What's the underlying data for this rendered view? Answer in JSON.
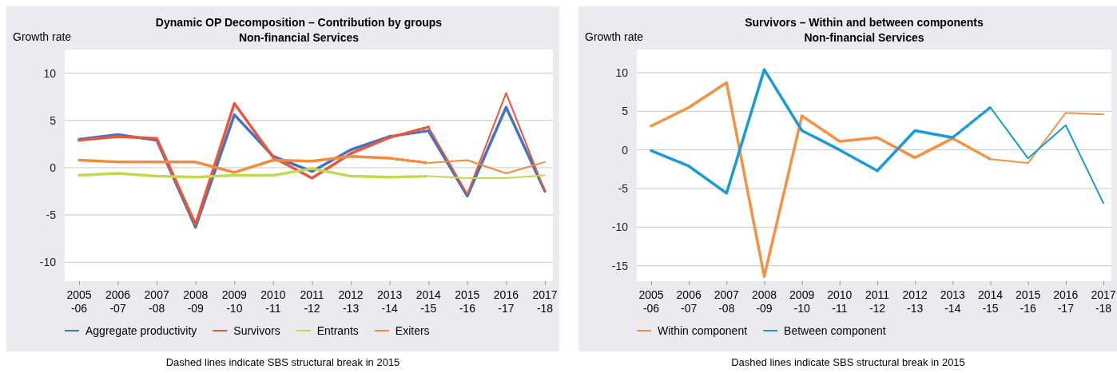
{
  "chart_data": [
    {
      "type": "line",
      "title": "Dynamic OP Decomposition – Contribution by groups",
      "subtitle": "Non-financial Services",
      "ylabel": "Growth rate",
      "categories": [
        "2005\n-06",
        "2006\n-07",
        "2007\n-08",
        "2008\n-09",
        "2009\n-10",
        "2010\n-11",
        "2011\n-12",
        "2012\n-13",
        "2013\n-14",
        "2014\n-15",
        "2015\n-16",
        "2016\n-17",
        "2017\n-18"
      ],
      "ylim": [
        -12,
        12.5
      ],
      "yticks": [
        -10,
        -5,
        0,
        5,
        10
      ],
      "grid": "y",
      "legend": "bottom left",
      "line_style": "solid",
      "annotations": [
        "Dashed lines indicate SBS structural break in 2015"
      ],
      "series": [
        {
          "name": "Aggregate productivity",
          "color": "#4472c4",
          "values": [
            3.0,
            3.5,
            2.9,
            -6.3,
            5.6,
            1.2,
            -0.4,
            1.9,
            3.3,
            null,
            null,
            null,
            null
          ]
        },
        {
          "name": "Survivors",
          "color": "#e8573a",
          "values": [
            2.9,
            3.3,
            3.1,
            -6.0,
            6.8,
            1.1,
            -1.1,
            1.5,
            3.2,
            null,
            null,
            null,
            null
          ]
        },
        {
          "name": "Entrants",
          "color": "#c2d94e",
          "values": [
            -0.8,
            -0.6,
            -0.9,
            -1.0,
            -0.8,
            -0.8,
            -0.1,
            -0.9,
            -1.0,
            null,
            null,
            null,
            null
          ]
        },
        {
          "name": "Exiters",
          "color": "#f58a3d",
          "values": [
            0.8,
            0.6,
            0.6,
            0.6,
            -0.5,
            0.8,
            0.7,
            1.2,
            1.0,
            null,
            null,
            null,
            null
          ]
        },
        {
          "color": "#4472c4",
          "line_style": "dashed",
          "values": [
            null,
            null,
            null,
            null,
            null,
            null,
            null,
            null,
            3.3,
            3.9,
            null,
            null,
            null
          ]
        },
        {
          "color": "#e8573a",
          "line_style": "dashed",
          "values": [
            null,
            null,
            null,
            null,
            null,
            null,
            null,
            null,
            3.2,
            4.3,
            null,
            null,
            null
          ]
        },
        {
          "color": "#c2d94e",
          "line_style": "dashed",
          "values": [
            null,
            null,
            null,
            null,
            null,
            null,
            null,
            null,
            -1.0,
            -0.9,
            null,
            null,
            null
          ]
        },
        {
          "color": "#f58a3d",
          "line_style": "dashed",
          "values": [
            null,
            null,
            null,
            null,
            null,
            null,
            null,
            null,
            1.0,
            0.5,
            null,
            null,
            null
          ]
        },
        {
          "color": "#4472c4",
          "values": [
            null,
            null,
            null,
            null,
            null,
            null,
            null,
            null,
            null,
            3.9,
            -3.0,
            6.4,
            -2.5
          ]
        },
        {
          "color": "#e8573a",
          "values": [
            null,
            null,
            null,
            null,
            null,
            null,
            null,
            null,
            null,
            4.3,
            -2.8,
            7.9,
            -2.5
          ]
        },
        {
          "color": "#c2d94e",
          "values": [
            null,
            null,
            null,
            null,
            null,
            null,
            null,
            null,
            null,
            -0.9,
            -1.1,
            -1.1,
            -0.8
          ]
        },
        {
          "color": "#f58a3d",
          "values": [
            null,
            null,
            null,
            null,
            null,
            null,
            null,
            null,
            null,
            0.5,
            0.8,
            -0.6,
            0.6
          ]
        }
      ]
    },
    {
      "type": "line",
      "title": "Survivors – Within and between components",
      "subtitle": "Non-financial Services",
      "ylabel": "Growth rate",
      "categories": [
        "2005\n-06",
        "2006\n-07",
        "2007\n-08",
        "2008\n-09",
        "2009\n-10",
        "2010\n-11",
        "2011\n-12",
        "2012\n-13",
        "2013\n-14",
        "2014\n-15",
        "2015\n-16",
        "2016\n-17",
        "2017\n-18"
      ],
      "ylim": [
        -17,
        13
      ],
      "yticks": [
        -15,
        -10,
        -5,
        0,
        5,
        10
      ],
      "grid": "y",
      "legend": "bottom left",
      "line_style": "solid",
      "annotations": [
        "Dashed lines indicate SBS structural break in 2015"
      ],
      "series": [
        {
          "name": "Within component",
          "color": "#f39244",
          "values": [
            3.1,
            5.5,
            8.7,
            -16.4,
            4.4,
            1.1,
            1.6,
            -1.0,
            1.5,
            null,
            null,
            null,
            null
          ]
        },
        {
          "name": "Between component",
          "color": "#1a9ad6",
          "values": [
            -0.1,
            -2.1,
            -5.6,
            10.4,
            2.5,
            0.0,
            -2.7,
            2.5,
            1.6,
            null,
            null,
            null,
            null
          ]
        },
        {
          "color": "#f39244",
          "line_style": "dashed",
          "values": [
            null,
            null,
            null,
            null,
            null,
            null,
            null,
            null,
            1.5,
            -1.2,
            null,
            null,
            null
          ]
        },
        {
          "color": "#1a9ad6",
          "line_style": "dashed",
          "values": [
            null,
            null,
            null,
            null,
            null,
            null,
            null,
            null,
            1.6,
            5.5,
            null,
            null,
            null
          ]
        },
        {
          "color": "#f39244",
          "values": [
            null,
            null,
            null,
            null,
            null,
            null,
            null,
            null,
            null,
            -1.2,
            -1.7,
            4.8,
            4.6
          ]
        },
        {
          "color": "#1a9ad6",
          "values": [
            null,
            null,
            null,
            null,
            null,
            null,
            null,
            null,
            null,
            5.5,
            -1.1,
            3.2,
            -6.9
          ]
        }
      ]
    }
  ]
}
